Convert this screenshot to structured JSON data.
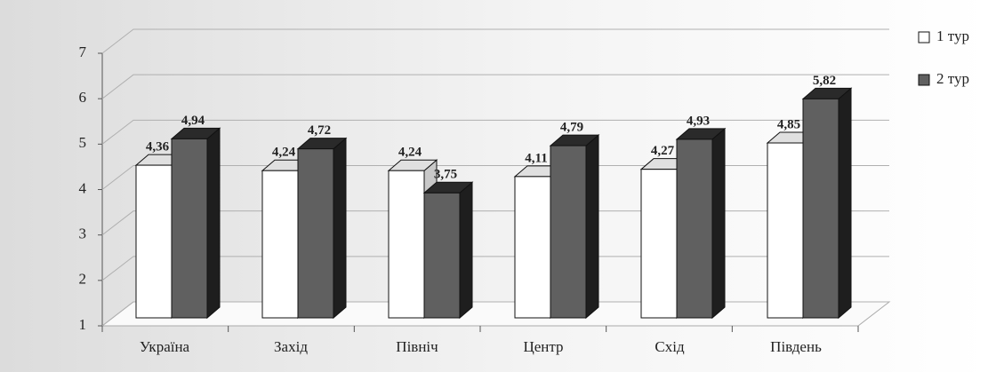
{
  "chart_data": {
    "type": "bar3d",
    "categories": [
      "Україна",
      "Захід",
      "Північ",
      "Центр",
      "Схід",
      "Південь"
    ],
    "series": [
      {
        "name": "1 тур",
        "color": "#ffffff",
        "values": [
          4.36,
          4.24,
          4.24,
          4.11,
          4.27,
          4.85
        ],
        "value_labels": [
          "4,36",
          "4,24",
          "4,24",
          "4,11",
          "4,27",
          "4,85"
        ]
      },
      {
        "name": "2 тур",
        "color": "#606060",
        "values": [
          4.94,
          4.72,
          3.75,
          4.79,
          4.93,
          5.82
        ],
        "value_labels": [
          "4,94",
          "4,72",
          "3,75",
          "4,79",
          "4,93",
          "5,82"
        ]
      }
    ],
    "ylim": [
      1,
      7
    ],
    "yticks": [
      1,
      2,
      3,
      4,
      5,
      6,
      7
    ],
    "grid": true,
    "legend": "right"
  }
}
